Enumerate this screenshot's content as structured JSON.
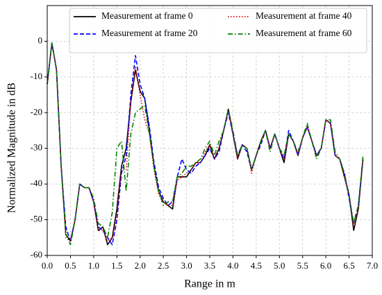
{
  "chart_data": {
    "type": "line",
    "xlabel": "Range in m",
    "ylabel": "Normalized Magnitude in dB",
    "xlim": [
      0,
      7
    ],
    "ylim": [
      -60,
      10
    ],
    "xticks": [
      {
        "value": 0,
        "label": "0.0"
      },
      {
        "value": 0.5,
        "label": "0.5"
      },
      {
        "value": 1,
        "label": "1.0"
      },
      {
        "value": 1.5,
        "label": "1.5"
      },
      {
        "value": 2,
        "label": "2.0"
      },
      {
        "value": 2.5,
        "label": "2.5"
      },
      {
        "value": 3,
        "label": "3.0"
      },
      {
        "value": 3.5,
        "label": "3.5"
      },
      {
        "value": 4,
        "label": "4.0"
      },
      {
        "value": 4.5,
        "label": "4.5"
      },
      {
        "value": 5,
        "label": "5.0"
      },
      {
        "value": 5.5,
        "label": "5.5"
      },
      {
        "value": 6,
        "label": "6.0"
      },
      {
        "value": 6.5,
        "label": "6.5"
      },
      {
        "value": 7,
        "label": "7.0"
      }
    ],
    "yticks": [
      -60,
      -50,
      -40,
      -30,
      -20,
      -10,
      0
    ],
    "grid": true,
    "legend": "upper right",
    "x": [
      0.0,
      0.1,
      0.2,
      0.3,
      0.4,
      0.5,
      0.6,
      0.7,
      0.8,
      0.9,
      1.0,
      1.1,
      1.2,
      1.3,
      1.4,
      1.5,
      1.6,
      1.7,
      1.8,
      1.9,
      2.0,
      2.1,
      2.2,
      2.3,
      2.4,
      2.5,
      2.6,
      2.7,
      2.8,
      2.9,
      3.0,
      3.1,
      3.2,
      3.3,
      3.4,
      3.5,
      3.6,
      3.7,
      3.8,
      3.9,
      4.0,
      4.1,
      4.2,
      4.3,
      4.4,
      4.5,
      4.6,
      4.7,
      4.8,
      4.9,
      5.0,
      5.1,
      5.2,
      5.3,
      5.4,
      5.5,
      5.6,
      5.7,
      5.8,
      5.9,
      6.0,
      6.1,
      6.2,
      6.3,
      6.4,
      6.5,
      6.6,
      6.7,
      6.8
    ],
    "series": [
      {
        "name": "Measurement at frame 0",
        "color": "#000000",
        "linestyle": "solid",
        "values": [
          -12,
          -0.5,
          -8,
          -35,
          -54,
          -56,
          -50,
          -40,
          -41,
          -41,
          -45,
          -53,
          -52,
          -57,
          -55,
          -47,
          -35,
          -30,
          -17,
          -8,
          -14,
          -16,
          -25,
          -35,
          -42,
          -45,
          -46,
          -47,
          -38,
          -38,
          -38,
          -36,
          -34,
          -34,
          -32,
          -29,
          -33,
          -30,
          -25,
          -19,
          -26,
          -33,
          -29,
          -30,
          -36,
          -32,
          -28,
          -25,
          -30,
          -26,
          -30,
          -34,
          -26,
          -28,
          -32,
          -27,
          -24,
          -28,
          -32,
          -30,
          -22,
          -23,
          -32,
          -33,
          -38,
          -43,
          -53,
          -47,
          -33
        ]
      },
      {
        "name": "Measurement at frame 20",
        "color": "#0000ff",
        "linestyle": "dashed",
        "values": [
          -12,
          -0.5,
          -8,
          -35,
          -52,
          -56,
          -50,
          -40,
          -41,
          -41,
          -45,
          -52,
          -53,
          -55,
          -57,
          -50,
          -37,
          -32,
          -15,
          -4,
          -12,
          -16,
          -24,
          -34,
          -41,
          -44,
          -46,
          -45,
          -38,
          -33,
          -36,
          -37,
          -35,
          -34,
          -32,
          -30,
          -33,
          -31,
          -25,
          -20,
          -26,
          -32,
          -29,
          -31,
          -36,
          -32,
          -29,
          -25,
          -30,
          -26,
          -30,
          -33,
          -25,
          -28,
          -32,
          -27,
          -24,
          -28,
          -32,
          -30,
          -22,
          -23,
          -32,
          -33,
          -37,
          -44,
          -51,
          -46,
          -33
        ]
      },
      {
        "name": "Measurement at frame 40",
        "color": "#e00000",
        "linestyle": "dotted",
        "values": [
          -12,
          -0.5,
          -8,
          -35,
          -55,
          -56,
          -50,
          -40,
          -41,
          -41,
          -45,
          -53,
          -53,
          -56,
          -55,
          -49,
          -36,
          -36,
          -17,
          -7,
          -15,
          -22,
          -26,
          -36,
          -43,
          -45,
          -46,
          -46,
          -39,
          -38,
          -37,
          -36,
          -34,
          -34,
          -31,
          -29,
          -33,
          -30,
          -25,
          -19,
          -26,
          -33,
          -29,
          -30,
          -37,
          -32,
          -28,
          -25,
          -30,
          -26,
          -30,
          -33,
          -26,
          -28,
          -32,
          -27,
          -24,
          -28,
          -32,
          -30,
          -22,
          -23,
          -32,
          -33,
          -38,
          -43,
          -52,
          -47,
          -33
        ]
      },
      {
        "name": "Measurement at frame 60",
        "color": "#008000",
        "linestyle": "dashdot",
        "values": [
          -12,
          -0.5,
          -8,
          -35,
          -54,
          -57,
          -50,
          -40,
          -41,
          -41,
          -44,
          -51,
          -52,
          -55,
          -48,
          -30,
          -28,
          -42,
          -26,
          -20,
          -19,
          -18,
          -26,
          -35,
          -42,
          -46,
          -45,
          -45,
          -38,
          -37,
          -35,
          -35,
          -34,
          -33,
          -30,
          -28,
          -32,
          -28,
          -25,
          -19,
          -25,
          -32,
          -29,
          -30,
          -36,
          -32,
          -28,
          -25,
          -31,
          -26,
          -30,
          -32,
          -26,
          -28,
          -31,
          -27,
          -23,
          -28,
          -33,
          -30,
          -22,
          -22,
          -31,
          -33,
          -37,
          -43,
          -51,
          -46,
          -32
        ]
      }
    ]
  }
}
